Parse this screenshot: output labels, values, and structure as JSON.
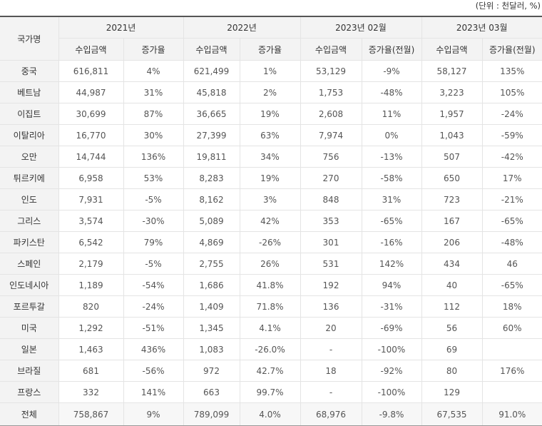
{
  "unit_label": "(단위 : 천달러, %)",
  "header": {
    "country_label": "국가명",
    "periods": [
      "2021년",
      "2022년",
      "2023년 02월",
      "2023년 03월"
    ],
    "subcolumns": [
      "수입금액",
      "증가율",
      "수입금액",
      "증가율",
      "수입금액",
      "증가율(전월)",
      "수입금액",
      "증가율(전월)"
    ]
  },
  "rows": [
    {
      "country": "중국",
      "v": [
        "616,811",
        "4%",
        "621,499",
        "1%",
        "53,129",
        "-9%",
        "58,127",
        "135%"
      ]
    },
    {
      "country": "베트남",
      "v": [
        "44,987",
        "31%",
        "45,818",
        "2%",
        "1,753",
        "-48%",
        "3,223",
        "105%"
      ]
    },
    {
      "country": "이집트",
      "v": [
        "30,699",
        "87%",
        "36,665",
        "19%",
        "2,608",
        "11%",
        "1,957",
        "-24%"
      ]
    },
    {
      "country": "이탈리아",
      "v": [
        "16,770",
        "30%",
        "27,399",
        "63%",
        "7,974",
        "0%",
        "1,043",
        "-59%"
      ]
    },
    {
      "country": "오만",
      "v": [
        "14,744",
        "136%",
        "19,811",
        "34%",
        "756",
        "-13%",
        "507",
        "-42%"
      ]
    },
    {
      "country": "튀르키에",
      "v": [
        "6,958",
        "53%",
        "8,283",
        "19%",
        "270",
        "-58%",
        "650",
        "17%"
      ]
    },
    {
      "country": "인도",
      "v": [
        "7,931",
        "-5%",
        "8,162",
        "3%",
        "848",
        "31%",
        "723",
        "-21%"
      ]
    },
    {
      "country": "그리스",
      "v": [
        "3,574",
        "-30%",
        "5,089",
        "42%",
        "353",
        "-65%",
        "167",
        "-65%"
      ]
    },
    {
      "country": "파키스탄",
      "v": [
        "6,542",
        "79%",
        "4,869",
        "-26%",
        "301",
        "-16%",
        "206",
        "-48%"
      ]
    },
    {
      "country": "스페인",
      "v": [
        "2,179",
        "-5%",
        "2,755",
        "26%",
        "531",
        "142%",
        "434",
        "46"
      ]
    },
    {
      "country": "인도네시아",
      "v": [
        "1,189",
        "-54%",
        "1,686",
        "41.8%",
        "192",
        "94%",
        "40",
        "-65%"
      ]
    },
    {
      "country": "포르투갈",
      "v": [
        "820",
        "-24%",
        "1,409",
        "71.8%",
        "136",
        "-31%",
        "112",
        "18%"
      ]
    },
    {
      "country": "미국",
      "v": [
        "1,292",
        "-51%",
        "1,345",
        "4.1%",
        "20",
        "-69%",
        "56",
        "60%"
      ]
    },
    {
      "country": "일본",
      "v": [
        "1,463",
        "436%",
        "1,083",
        "-26.0%",
        "-",
        "-100%",
        "69",
        ""
      ]
    },
    {
      "country": "브라질",
      "v": [
        "681",
        "-56%",
        "972",
        "42.7%",
        "18",
        "-92%",
        "80",
        "176%"
      ]
    },
    {
      "country": "프랑스",
      "v": [
        "332",
        "141%",
        "663",
        "99.7%",
        "-",
        "-100%",
        "129",
        ""
      ]
    }
  ],
  "total": {
    "country": "전체",
    "v": [
      "758,867",
      "9%",
      "789,099",
      "4.0%",
      "68,976",
      "-9.8%",
      "67,535",
      "91.0%"
    ]
  }
}
